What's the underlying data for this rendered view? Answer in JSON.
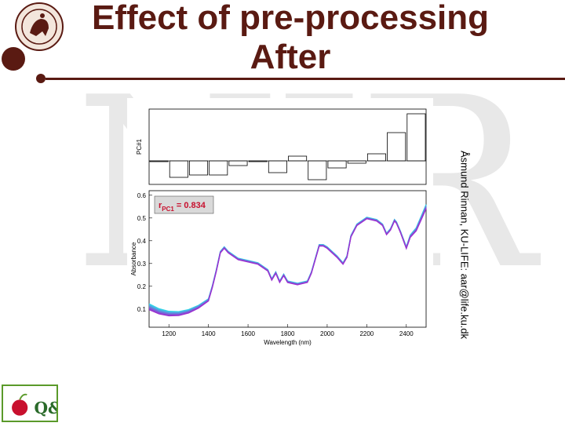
{
  "slide": {
    "title_line1": "Effect of pre-processing",
    "title_line2": "After",
    "side_text": "Åsmund Rinnan, KU-LIFE: aar@life.ku.dk",
    "watermark": "NIR",
    "logo_text": "Q&T"
  },
  "colors": {
    "brand": "#5a1a12",
    "spectra_from": "#2fd8e8",
    "spectra_to": "#9b30d0"
  },
  "chart_data": [
    {
      "type": "bar",
      "panel": "top",
      "ylabel": "PC#1",
      "x": [
        1200,
        1300,
        1400,
        1500,
        1600,
        1700,
        1800,
        1900,
        2000,
        2100,
        2200,
        2300,
        2400,
        2500
      ],
      "values": [
        0.0,
        -0.7,
        -0.6,
        -0.6,
        -0.2,
        0.0,
        -0.5,
        0.2,
        -0.8,
        -0.3,
        -0.1,
        0.3,
        1.2,
        2.0
      ],
      "xlim": [
        1100,
        2500
      ],
      "ylim": [
        -1,
        2.2
      ]
    },
    {
      "type": "line",
      "panel": "bottom",
      "title": "",
      "xlabel": "Wavelength (nm)",
      "ylabel": "Absorbance",
      "xlim": [
        1100,
        2500
      ],
      "ylim": [
        0.02,
        0.62
      ],
      "xticks": [
        1200,
        1400,
        1600,
        1800,
        2000,
        2200,
        2400
      ],
      "yticks": [
        0.1,
        0.2,
        0.3,
        0.4,
        0.5,
        0.6
      ],
      "annotation": {
        "r_label": "r",
        "subscript": "PC1",
        "value_text": "= 0.834"
      },
      "n_series": 8,
      "x": [
        1100,
        1150,
        1200,
        1250,
        1300,
        1350,
        1400,
        1420,
        1440,
        1460,
        1480,
        1500,
        1550,
        1600,
        1650,
        1700,
        1720,
        1740,
        1760,
        1780,
        1800,
        1850,
        1900,
        1920,
        1940,
        1960,
        1980,
        2000,
        2050,
        2080,
        2100,
        2120,
        2150,
        2200,
        2250,
        2280,
        2300,
        2320,
        2340,
        2350,
        2370,
        2400,
        2420,
        2450,
        2480,
        2500
      ],
      "values": [
        0.11,
        0.09,
        0.08,
        0.08,
        0.09,
        0.11,
        0.14,
        0.2,
        0.27,
        0.35,
        0.37,
        0.35,
        0.32,
        0.31,
        0.3,
        0.27,
        0.23,
        0.26,
        0.22,
        0.25,
        0.22,
        0.21,
        0.22,
        0.26,
        0.32,
        0.38,
        0.38,
        0.37,
        0.33,
        0.3,
        0.33,
        0.42,
        0.47,
        0.5,
        0.49,
        0.47,
        0.43,
        0.45,
        0.49,
        0.48,
        0.44,
        0.37,
        0.42,
        0.45,
        0.51,
        0.55
      ]
    }
  ]
}
